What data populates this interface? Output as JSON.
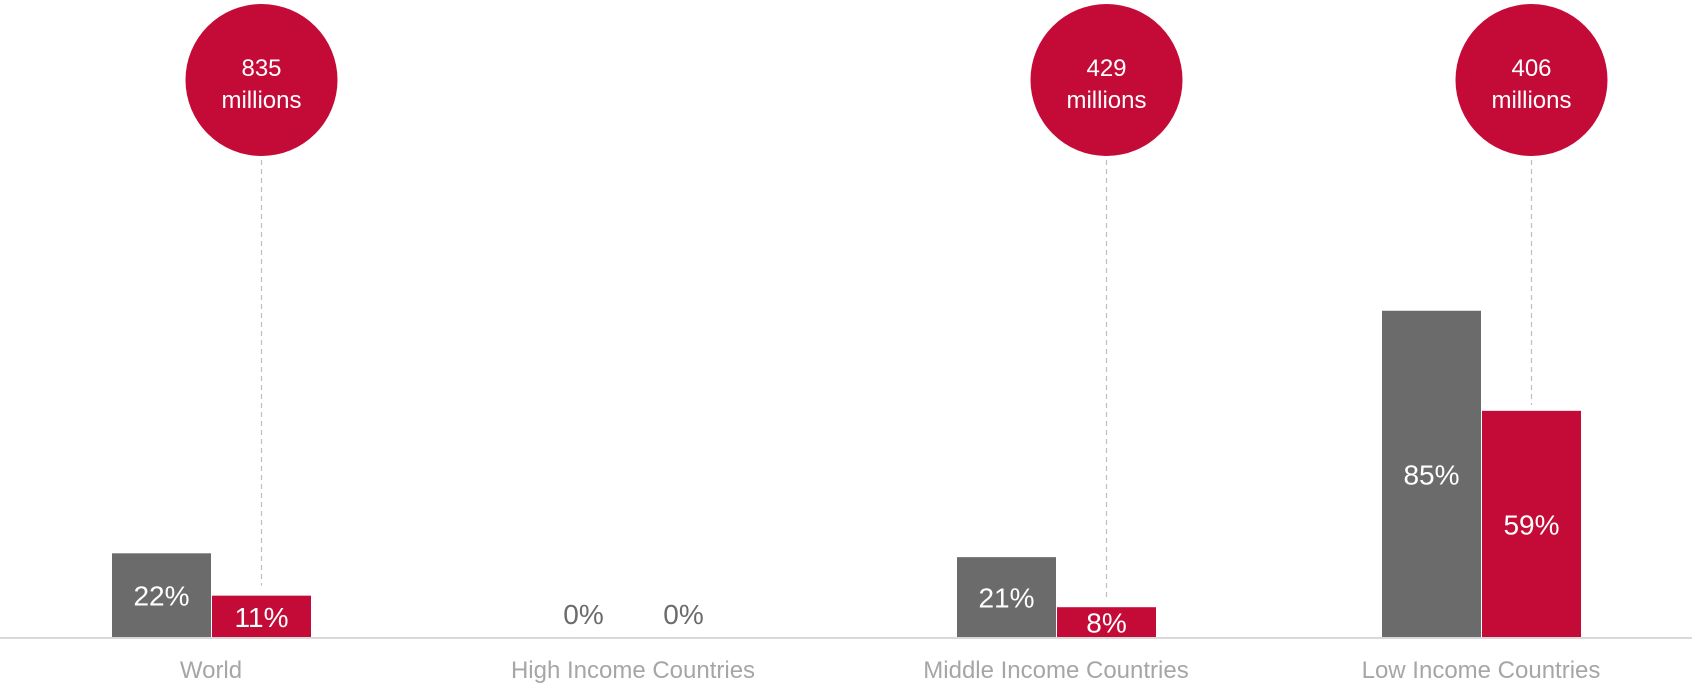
{
  "chart_data": {
    "type": "bar",
    "categories": [
      "World",
      "High Income Countries",
      "Middle Income Countries",
      "Low Income Countries"
    ],
    "series": [
      {
        "values": [
          22,
          0,
          21,
          85
        ],
        "labels": [
          "22%",
          "0%",
          "21%",
          "85%"
        ],
        "color": "#6b6b6b"
      },
      {
        "values": [
          11,
          0,
          8,
          59
        ],
        "labels": [
          "11%",
          "0%",
          "8%",
          "59%"
        ],
        "color": "#c40b38"
      }
    ],
    "callouts": [
      {
        "category_index": 0,
        "number": "835",
        "unit": "millions"
      },
      {
        "category_index": 2,
        "number": "429",
        "unit": "millions"
      },
      {
        "category_index": 3,
        "number": "406",
        "unit": "millions"
      }
    ],
    "ylim": [
      0,
      100
    ],
    "grid": false,
    "axis_color": "#d9d9d9",
    "category_label_color": "#a6a6a6",
    "zero_label_color": "#6b6b6b",
    "callout_color": "#c40b38"
  }
}
